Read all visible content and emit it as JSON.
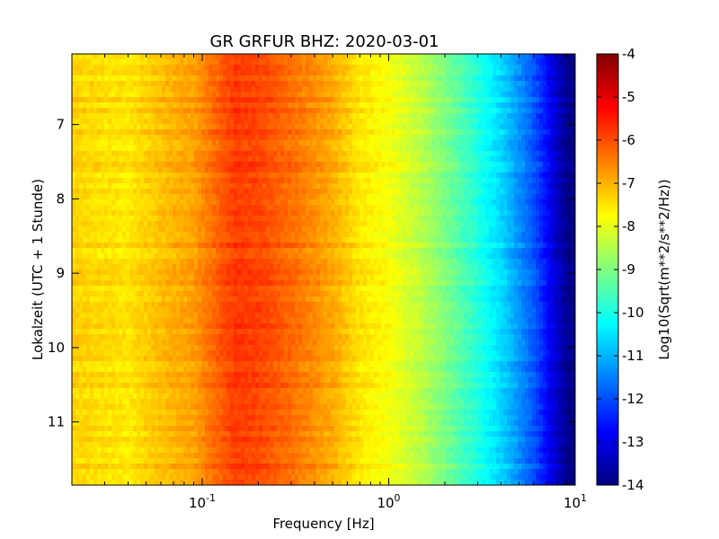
{
  "chart_data": {
    "type": "heatmap",
    "title": "GR GRFUR BHZ: 2020-03-01",
    "xlabel": "Frequency [Hz]",
    "ylabel": "Lokalzeit (UTC + 1 Stunde)",
    "x_scale": "log",
    "x_range": [
      0.02,
      10
    ],
    "y_range": [
      11.85,
      6.05
    ],
    "x_ticks": [
      {
        "value": 0.1,
        "base": "10",
        "exp": "-1"
      },
      {
        "value": 1,
        "base": "10",
        "exp": "0"
      },
      {
        "value": 10,
        "base": "10",
        "exp": "1"
      }
    ],
    "y_ticks": [
      {
        "value": 7,
        "label": "7"
      },
      {
        "value": 8,
        "label": "8"
      },
      {
        "value": 9,
        "label": "9"
      },
      {
        "value": 10,
        "label": "10"
      },
      {
        "value": 11,
        "label": "11"
      }
    ],
    "grid": false,
    "colorbar": {
      "label": "Log10(Sqrt(m**2/s**2/Hz))",
      "colormap": "jet",
      "range": [
        -14,
        -4
      ],
      "ticks": [
        "-4",
        "-5",
        "-6",
        "-7",
        "-8",
        "-9",
        "-10",
        "-11",
        "-12",
        "-13",
        "-14"
      ]
    },
    "spectrum_profile": [
      {
        "frequency": 0.02,
        "value": -7.3
      },
      {
        "frequency": 0.04,
        "value": -7.5
      },
      {
        "frequency": 0.06,
        "value": -7.1
      },
      {
        "frequency": 0.09,
        "value": -6.8
      },
      {
        "frequency": 0.12,
        "value": -6.2
      },
      {
        "frequency": 0.15,
        "value": -5.8
      },
      {
        "frequency": 0.2,
        "value": -5.9
      },
      {
        "frequency": 0.3,
        "value": -6.3
      },
      {
        "frequency": 0.5,
        "value": -6.9
      },
      {
        "frequency": 0.7,
        "value": -7.5
      },
      {
        "frequency": 1.0,
        "value": -7.8
      },
      {
        "frequency": 1.5,
        "value": -8.4
      },
      {
        "frequency": 2.0,
        "value": -9.0
      },
      {
        "frequency": 3.0,
        "value": -9.9
      },
      {
        "frequency": 4.0,
        "value": -10.6
      },
      {
        "frequency": 5.0,
        "value": -11.3
      },
      {
        "frequency": 6.0,
        "value": -11.9
      },
      {
        "frequency": 7.0,
        "value": -12.6
      },
      {
        "frequency": 8.0,
        "value": -13.3
      },
      {
        "frequency": 9.0,
        "value": -13.8
      },
      {
        "frequency": 10.0,
        "value": -14.0
      }
    ]
  }
}
